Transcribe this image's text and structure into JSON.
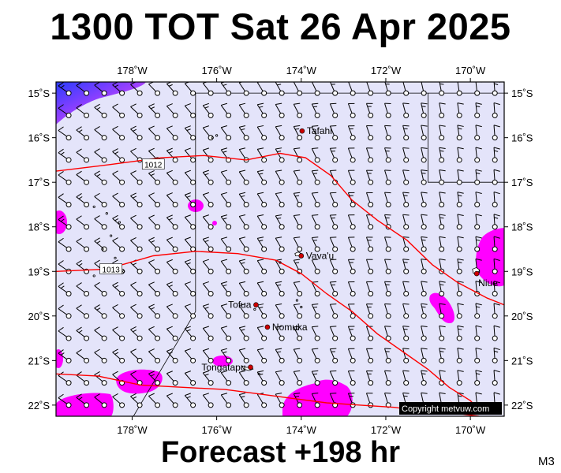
{
  "title": "1300 TOT Sat 26 Apr 2025",
  "subtitle": "Forecast +198 hr",
  "model_code": "M3",
  "copyright": "Copyright metvuw.com",
  "colors": {
    "ocean": "#e4e4fa",
    "isobar": "#ff0000",
    "rain": "#ff00ff",
    "rain_heavy": "#2a3cff",
    "wind": "#000000",
    "border": "#000000"
  },
  "map": {
    "lon_range": [
      -179.8,
      -169.2
    ],
    "lat_range": [
      -22.25,
      -14.75
    ],
    "lon_ticks": [
      {
        "value": -178,
        "label": "178˚W"
      },
      {
        "value": -176,
        "label": "176˚W"
      },
      {
        "value": -174,
        "label": "174˚W"
      },
      {
        "value": -172,
        "label": "172˚W"
      },
      {
        "value": -170,
        "label": "170˚W"
      }
    ],
    "lat_ticks": [
      {
        "value": -15,
        "label": "15˚S"
      },
      {
        "value": -16,
        "label": "16˚S"
      },
      {
        "value": -17,
        "label": "17˚S"
      },
      {
        "value": -18,
        "label": "18˚S"
      },
      {
        "value": -19,
        "label": "19˚S"
      },
      {
        "value": -20,
        "label": "20˚S"
      },
      {
        "value": -21,
        "label": "21˚S"
      },
      {
        "value": -22,
        "label": "22˚S"
      }
    ],
    "places": [
      {
        "name": "Tafahi",
        "lon": -173.98,
        "lat": -15.85
      },
      {
        "name": "Vava'u",
        "lon": -174.0,
        "lat": -18.65
      },
      {
        "name": "Niue",
        "lon": -169.85,
        "lat": -19.05
      },
      {
        "name": "Tofua",
        "lon": -175.07,
        "lat": -19.75
      },
      {
        "name": "Nomuka",
        "lon": -174.8,
        "lat": -20.25
      },
      {
        "name": "Tongatapu",
        "lon": -175.2,
        "lat": -21.15
      }
    ],
    "isobars": [
      {
        "label": "1012",
        "label_at": [
          -177.5,
          -16.6
        ],
        "points": [
          [
            -179.8,
            -16.75
          ],
          [
            -178.5,
            -16.6
          ],
          [
            -177.3,
            -16.45
          ],
          [
            -176.3,
            -16.4
          ],
          [
            -175.3,
            -16.5
          ],
          [
            -174.5,
            -16.35
          ],
          [
            -173.9,
            -16.45
          ],
          [
            -173.3,
            -16.85
          ],
          [
            -172.8,
            -17.4
          ],
          [
            -172.2,
            -17.85
          ],
          [
            -171.5,
            -18.3
          ],
          [
            -170.9,
            -18.85
          ],
          [
            -170.3,
            -19.25
          ],
          [
            -169.6,
            -19.6
          ],
          [
            -169.2,
            -19.75
          ]
        ]
      },
      {
        "label": "1013",
        "label_at": [
          -178.5,
          -18.95
        ],
        "points": [
          [
            -179.8,
            -19.0
          ],
          [
            -178.6,
            -18.95
          ],
          [
            -177.5,
            -18.65
          ],
          [
            -176.5,
            -18.55
          ],
          [
            -175.5,
            -18.6
          ],
          [
            -174.6,
            -18.75
          ],
          [
            -174.0,
            -19.05
          ],
          [
            -173.4,
            -19.5
          ],
          [
            -172.8,
            -19.9
          ],
          [
            -172.2,
            -20.4
          ],
          [
            -171.6,
            -20.8
          ],
          [
            -171.0,
            -21.2
          ],
          [
            -170.5,
            -21.6
          ],
          [
            -170.0,
            -21.9
          ],
          [
            -169.7,
            -22.2
          ]
        ]
      },
      {
        "label": "",
        "label_at": null,
        "points": [
          [
            -179.8,
            -21.3
          ],
          [
            -178.8,
            -21.35
          ],
          [
            -177.8,
            -21.55
          ],
          [
            -176.8,
            -21.6
          ],
          [
            -175.8,
            -21.65
          ],
          [
            -175.0,
            -21.75
          ],
          [
            -174.2,
            -21.85
          ],
          [
            -173.4,
            -21.95
          ],
          [
            -172.6,
            -22.0
          ],
          [
            -171.8,
            -22.05
          ],
          [
            -171.0,
            -22.15
          ],
          [
            -170.2,
            -22.2
          ],
          [
            -169.8,
            -22.25
          ]
        ]
      }
    ],
    "wind_grid": {
      "lon_start": -179.5,
      "lon_step": 0.42,
      "lat_start": -15.0,
      "lat_step": -0.5,
      "rows": 15,
      "cols": 26
    }
  }
}
